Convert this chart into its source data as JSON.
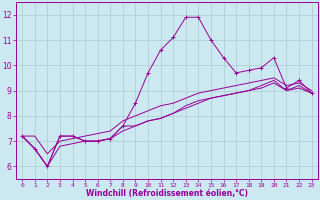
{
  "xlabel": "Windchill (Refroidissement éolien,°C)",
  "ylabel": "",
  "background_color": "#cce8f0",
  "line_color": "#990099",
  "grid_color": "#aacccc",
  "x_ticks": [
    0,
    1,
    2,
    3,
    4,
    5,
    6,
    7,
    8,
    9,
    10,
    11,
    12,
    13,
    14,
    15,
    16,
    17,
    18,
    19,
    20,
    21,
    22,
    23
  ],
  "y_ticks": [
    6,
    7,
    8,
    9,
    10,
    11,
    12
  ],
  "xlim": [
    -0.5,
    23.5
  ],
  "ylim": [
    5.5,
    12.5
  ],
  "series": [
    [
      7.2,
      6.7,
      6.0,
      7.2,
      7.2,
      7.0,
      7.0,
      7.1,
      7.6,
      8.5,
      9.7,
      10.6,
      11.1,
      11.9,
      11.9,
      11.0,
      10.3,
      9.7,
      9.8,
      9.9,
      10.3,
      9.1,
      9.4,
      8.9
    ],
    [
      7.2,
      6.7,
      6.0,
      7.2,
      7.2,
      7.0,
      7.0,
      7.1,
      7.6,
      7.6,
      7.8,
      7.9,
      8.1,
      8.4,
      8.6,
      8.7,
      8.8,
      8.9,
      9.0,
      9.2,
      9.4,
      9.0,
      9.2,
      8.9
    ],
    [
      7.2,
      6.7,
      6.0,
      6.8,
      6.9,
      7.0,
      7.0,
      7.1,
      7.4,
      7.6,
      7.8,
      7.9,
      8.1,
      8.3,
      8.5,
      8.7,
      8.8,
      8.9,
      9.0,
      9.1,
      9.3,
      9.0,
      9.1,
      8.9
    ],
    [
      7.2,
      7.2,
      6.5,
      7.0,
      7.1,
      7.2,
      7.3,
      7.4,
      7.8,
      8.0,
      8.2,
      8.4,
      8.5,
      8.7,
      8.9,
      9.0,
      9.1,
      9.2,
      9.3,
      9.4,
      9.5,
      9.2,
      9.3,
      9.0
    ]
  ],
  "xlabel_fontsize": 5.5,
  "xtick_fontsize": 4.5,
  "ytick_fontsize": 5.5,
  "linewidth": 0.7,
  "marker_size": 2.5,
  "marker_lw": 0.7
}
